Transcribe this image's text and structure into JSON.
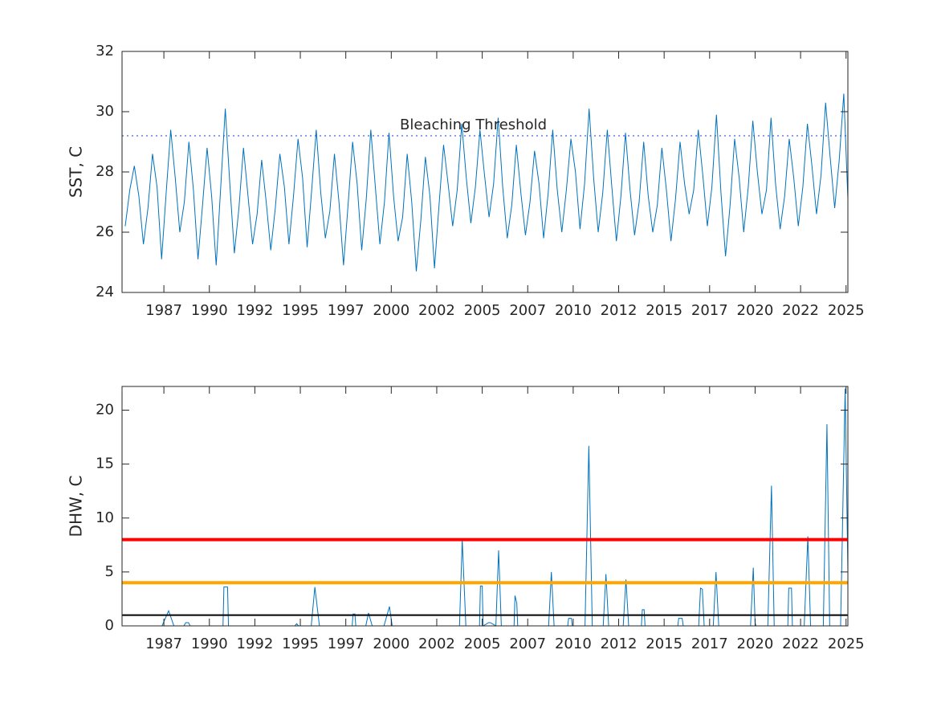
{
  "chart_data": [
    {
      "type": "line",
      "ylabel": "SST, C",
      "xlim": [
        1985.2,
        2025.1
      ],
      "ylim": [
        24,
        32
      ],
      "xticks": [
        {
          "value": 1987.5,
          "label": "1987"
        },
        {
          "value": 1990,
          "label": "1990"
        },
        {
          "value": 1992.5,
          "label": "1992"
        },
        {
          "value": 1995,
          "label": "1995"
        },
        {
          "value": 1997.5,
          "label": "1997"
        },
        {
          "value": 2000,
          "label": "2000"
        },
        {
          "value": 2002.5,
          "label": "2002"
        },
        {
          "value": 2005,
          "label": "2005"
        },
        {
          "value": 2007.5,
          "label": "2007"
        },
        {
          "value": 2010,
          "label": "2010"
        },
        {
          "value": 2012.5,
          "label": "2012"
        },
        {
          "value": 2015,
          "label": "2015"
        },
        {
          "value": 2017.5,
          "label": "2017"
        },
        {
          "value": 2020,
          "label": "2020"
        },
        {
          "value": 2022.5,
          "label": "2022"
        },
        {
          "value": 2025,
          "label": "2025"
        }
      ],
      "yticks": [
        24,
        26,
        28,
        30,
        32
      ],
      "threshold": 29.2,
      "threshold_label": "Bleaching Threshold",
      "threshold_color": "#4a5fd6",
      "series": [
        {
          "color": "#0072bd",
          "x": [
            1985.375,
            1985.625,
            1985.875,
            1986.125,
            1986.375,
            1986.625,
            1986.875,
            1987.125,
            1987.375,
            1987.625,
            1987.875,
            1988.125,
            1988.375,
            1988.625,
            1988.875,
            1989.125,
            1989.375,
            1989.625,
            1989.875,
            1990.125,
            1990.375,
            1990.625,
            1990.875,
            1991.125,
            1991.375,
            1991.625,
            1991.875,
            1992.125,
            1992.375,
            1992.625,
            1992.875,
            1993.125,
            1993.375,
            1993.625,
            1993.875,
            1994.125,
            1994.375,
            1994.625,
            1994.875,
            1995.125,
            1995.375,
            1995.625,
            1995.875,
            1996.125,
            1996.375,
            1996.625,
            1996.875,
            1997.125,
            1997.375,
            1997.625,
            1997.875,
            1998.125,
            1998.375,
            1998.625,
            1998.875,
            1999.125,
            1999.375,
            1999.625,
            1999.875,
            2000.125,
            2000.375,
            2000.625,
            2000.875,
            2001.125,
            2001.375,
            2001.625,
            2001.875,
            2002.125,
            2002.375,
            2002.625,
            2002.875,
            2003.125,
            2003.375,
            2003.625,
            2003.875,
            2004.125,
            2004.375,
            2004.625,
            2004.875,
            2005.125,
            2005.375,
            2005.625,
            2005.875,
            2006.125,
            2006.375,
            2006.625,
            2006.875,
            2007.125,
            2007.375,
            2007.625,
            2007.875,
            2008.125,
            2008.375,
            2008.625,
            2008.875,
            2009.125,
            2009.375,
            2009.625,
            2009.875,
            2010.125,
            2010.375,
            2010.625,
            2010.875,
            2011.125,
            2011.375,
            2011.625,
            2011.875,
            2012.125,
            2012.375,
            2012.625,
            2012.875,
            2013.125,
            2013.375,
            2013.625,
            2013.875,
            2014.125,
            2014.375,
            2014.625,
            2014.875,
            2015.125,
            2015.375,
            2015.625,
            2015.875,
            2016.125,
            2016.375,
            2016.625,
            2016.875,
            2017.125,
            2017.375,
            2017.625,
            2017.875,
            2018.125,
            2018.375,
            2018.625,
            2018.875,
            2019.125,
            2019.375,
            2019.625,
            2019.875,
            2020.125,
            2020.375,
            2020.625,
            2020.875,
            2021.125,
            2021.375,
            2021.625,
            2021.875,
            2022.125,
            2022.375,
            2022.625,
            2022.875,
            2023.125,
            2023.375,
            2023.625,
            2023.875,
            2024.125,
            2024.375,
            2024.625,
            2024.875,
            2025.1
          ],
          "values": [
            26.2,
            27.4,
            28.2,
            27.2,
            25.6,
            26.8,
            28.6,
            27.5,
            25.1,
            27.3,
            29.4,
            27.8,
            26.0,
            27.0,
            29.0,
            27.4,
            25.1,
            26.9,
            28.8,
            27.2,
            24.9,
            27.5,
            30.1,
            27.6,
            25.3,
            26.8,
            28.8,
            27.2,
            25.6,
            26.6,
            28.4,
            27.0,
            25.4,
            26.8,
            28.6,
            27.5,
            25.6,
            27.2,
            29.1,
            27.8,
            25.5,
            27.4,
            29.4,
            27.3,
            25.8,
            26.7,
            28.6,
            27.0,
            24.9,
            26.9,
            29.0,
            27.6,
            25.4,
            27.1,
            29.4,
            27.5,
            25.6,
            27.0,
            29.3,
            27.2,
            25.7,
            26.5,
            28.6,
            27.0,
            24.7,
            26.4,
            28.5,
            27.2,
            24.8,
            26.9,
            28.9,
            27.6,
            26.2,
            27.4,
            29.6,
            27.8,
            26.3,
            27.5,
            29.4,
            27.9,
            26.5,
            27.6,
            29.8,
            27.5,
            25.8,
            26.9,
            28.9,
            27.3,
            25.9,
            27.0,
            28.7,
            27.6,
            25.8,
            27.3,
            29.4,
            27.4,
            26.0,
            27.4,
            29.1,
            28.0,
            26.1,
            27.6,
            30.1,
            27.8,
            26.0,
            27.3,
            29.4,
            27.5,
            25.7,
            27.2,
            29.3,
            27.4,
            25.9,
            27.0,
            29.0,
            27.2,
            26.0,
            26.9,
            28.8,
            27.4,
            25.7,
            27.1,
            29.0,
            27.6,
            26.6,
            27.4,
            29.4,
            27.9,
            26.2,
            27.5,
            29.9,
            27.3,
            25.2,
            26.9,
            29.1,
            27.8,
            26.0,
            27.5,
            29.7,
            28.0,
            26.6,
            27.4,
            29.8,
            27.6,
            26.1,
            27.2,
            29.1,
            27.8,
            26.2,
            27.5,
            29.6,
            28.2,
            26.6,
            27.9,
            30.3,
            28.5,
            26.8,
            28.4,
            30.6,
            27.1
          ]
        }
      ]
    },
    {
      "type": "line",
      "ylabel": "DHW, C",
      "xlim": [
        1985.2,
        2025.1
      ],
      "ylim": [
        0,
        22.2
      ],
      "xticks": [
        {
          "value": 1987.5,
          "label": "1987"
        },
        {
          "value": 1990,
          "label": "1990"
        },
        {
          "value": 1992.5,
          "label": "1992"
        },
        {
          "value": 1995,
          "label": "1995"
        },
        {
          "value": 1997.5,
          "label": "1997"
        },
        {
          "value": 2000,
          "label": "2000"
        },
        {
          "value": 2002.5,
          "label": "2002"
        },
        {
          "value": 2005,
          "label": "2005"
        },
        {
          "value": 2007.5,
          "label": "2007"
        },
        {
          "value": 2010,
          "label": "2010"
        },
        {
          "value": 2012.5,
          "label": "2012"
        },
        {
          "value": 2015,
          "label": "2015"
        },
        {
          "value": 2017.5,
          "label": "2017"
        },
        {
          "value": 2020,
          "label": "2020"
        },
        {
          "value": 2022.5,
          "label": "2022"
        },
        {
          "value": 2025,
          "label": "2025"
        }
      ],
      "yticks": [
        0,
        5,
        10,
        15,
        20
      ],
      "hlines": [
        {
          "value": 8,
          "color": "#ff0000"
        },
        {
          "value": 4,
          "color": "#ffa500"
        },
        {
          "value": 1,
          "color": "#000000"
        }
      ],
      "series": [
        {
          "color": "#0072bd",
          "x": [
            1985.2,
            1987.4,
            1987.76,
            1988.05,
            1988.6,
            1988.7,
            1988.85,
            1988.95,
            1990.75,
            1990.8,
            1991.0,
            1991.05,
            1994.7,
            1994.8,
            1994.9,
            1995.6,
            1995.8,
            1996.05,
            1997.85,
            1997.9,
            1998.0,
            1998.05,
            1998.6,
            1998.75,
            1998.95,
            1999.6,
            1999.9,
            2000.05,
            2003.75,
            2003.9,
            2004.1,
            2004.85,
            2004.9,
            2005.0,
            2005.05,
            2005.35,
            2005.45,
            2005.75,
            2005.9,
            2006.05,
            2006.75,
            2006.8,
            2006.9,
            2006.95,
            2008.65,
            2008.8,
            2008.95,
            2009.7,
            2009.75,
            2009.9,
            2009.95,
            2010.65,
            2010.86,
            2011.05,
            2011.65,
            2011.8,
            2011.95,
            2012.75,
            2012.9,
            2013.05,
            2013.75,
            2013.8,
            2013.9,
            2013.95,
            2015.75,
            2015.8,
            2015.99,
            2016.05,
            2016.9,
            2017.0,
            2017.1,
            2017.2,
            2017.7,
            2017.85,
            2018.0,
            2019.75,
            2019.9,
            2020.0,
            2020.05,
            2020.7,
            2020.9,
            2021.05,
            2021.8,
            2021.85,
            2022.0,
            2022.05,
            2022.7,
            2022.9,
            2023.05,
            2023.75,
            2023.95,
            2024.1,
            2024.7,
            2024.95,
            2025.1
          ],
          "values": [
            0,
            0,
            1.4,
            0,
            0,
            0.3,
            0.3,
            0,
            0,
            3.6,
            3.6,
            0,
            0,
            0.2,
            0,
            0,
            3.6,
            0,
            0,
            1.1,
            1.1,
            0,
            0,
            1.2,
            0,
            0,
            1.8,
            0,
            0,
            8.0,
            0,
            0,
            3.7,
            3.7,
            0,
            0.3,
            0.3,
            0,
            7.0,
            0,
            0,
            2.8,
            2.1,
            0,
            0,
            5.0,
            0,
            0,
            0.7,
            0.7,
            0,
            0,
            16.7,
            0,
            0,
            4.8,
            0,
            0,
            4.3,
            0,
            0,
            1.5,
            1.5,
            0,
            0,
            0.7,
            0.7,
            0,
            0,
            3.5,
            3.4,
            0,
            0,
            5.0,
            0,
            0,
            5.4,
            0.3,
            0,
            0,
            13.0,
            0,
            0,
            3.5,
            3.5,
            0,
            0,
            8.3,
            0,
            0,
            18.7,
            0,
            0,
            22.0,
            5.0
          ]
        }
      ]
    }
  ]
}
